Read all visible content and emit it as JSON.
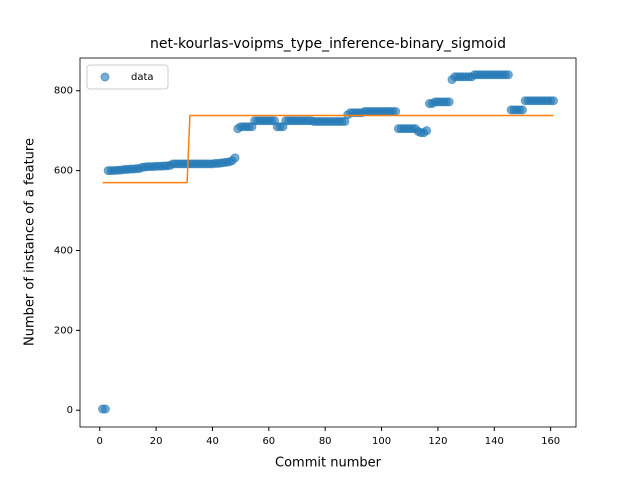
{
  "chart_data": {
    "type": "scatter",
    "title": "net-kourlas-voipms_type_inference-binary_sigmoid",
    "xlabel": "Commit number",
    "ylabel": "Number of instance of a feature",
    "xlim": [
      -7,
      169
    ],
    "ylim": [
      -42,
      882
    ],
    "xticks": [
      0,
      20,
      40,
      60,
      80,
      100,
      120,
      140,
      160
    ],
    "yticks": [
      0,
      200,
      400,
      600,
      800
    ],
    "legend": "upper left",
    "series": [
      {
        "name": "data",
        "type": "scatter",
        "color": "#1f77b4",
        "x": [
          1,
          2,
          3,
          4,
          5,
          6,
          7,
          8,
          9,
          10,
          11,
          12,
          13,
          14,
          15,
          16,
          17,
          18,
          19,
          20,
          21,
          22,
          23,
          24,
          25,
          26,
          27,
          28,
          29,
          30,
          31,
          32,
          33,
          34,
          35,
          36,
          37,
          38,
          39,
          40,
          41,
          42,
          43,
          44,
          45,
          46,
          47,
          48,
          49,
          50,
          51,
          52,
          53,
          54,
          55,
          56,
          57,
          58,
          59,
          60,
          61,
          62,
          63,
          64,
          65,
          66,
          67,
          68,
          69,
          70,
          71,
          72,
          73,
          74,
          75,
          76,
          77,
          78,
          79,
          80,
          81,
          82,
          83,
          84,
          85,
          86,
          87,
          88,
          89,
          90,
          91,
          92,
          93,
          94,
          95,
          96,
          97,
          98,
          99,
          100,
          101,
          102,
          103,
          104,
          105,
          106,
          107,
          108,
          109,
          110,
          111,
          112,
          113,
          114,
          115,
          116,
          117,
          118,
          119,
          120,
          121,
          122,
          123,
          124,
          125,
          126,
          127,
          128,
          129,
          130,
          131,
          132,
          133,
          134,
          135,
          136,
          137,
          138,
          139,
          140,
          141,
          142,
          143,
          144,
          145,
          146,
          147,
          148,
          149,
          150,
          151,
          152,
          153,
          154,
          155,
          156,
          157,
          158,
          159,
          160,
          161
        ],
        "values": [
          3,
          3,
          600,
          600,
          600,
          601,
          601,
          602,
          603,
          603,
          604,
          604,
          605,
          605,
          608,
          609,
          610,
          610,
          610,
          611,
          611,
          611,
          612,
          612,
          613,
          617,
          617,
          617,
          617,
          617,
          617,
          617,
          617,
          617,
          617,
          617,
          617,
          617,
          617,
          617,
          618,
          618,
          619,
          620,
          621,
          622,
          625,
          632,
          705,
          710,
          710,
          710,
          710,
          710,
          725,
          725,
          725,
          725,
          725,
          725,
          725,
          725,
          710,
          710,
          710,
          725,
          725,
          725,
          725,
          725,
          725,
          725,
          725,
          725,
          725,
          723,
          723,
          723,
          723,
          723,
          723,
          723,
          723,
          723,
          723,
          723,
          723,
          740,
          745,
          745,
          745,
          745,
          745,
          748,
          748,
          748,
          748,
          748,
          748,
          748,
          748,
          748,
          748,
          748,
          748,
          705,
          705,
          705,
          705,
          705,
          705,
          705,
          698,
          695,
          695,
          700,
          768,
          768,
          772,
          772,
          772,
          772,
          772,
          772,
          828,
          835,
          835,
          835,
          835,
          835,
          835,
          835,
          840,
          840,
          840,
          840,
          840,
          840,
          840,
          840,
          840,
          840,
          840,
          840,
          840,
          752,
          752,
          752,
          752,
          752,
          775,
          775,
          775,
          775,
          775,
          775,
          775,
          775,
          775,
          775,
          775
        ]
      },
      {
        "type": "line",
        "color": "#ff7f0e",
        "x": [
          1,
          31,
          32,
          161
        ],
        "values": [
          570,
          570,
          738,
          738
        ]
      }
    ]
  }
}
